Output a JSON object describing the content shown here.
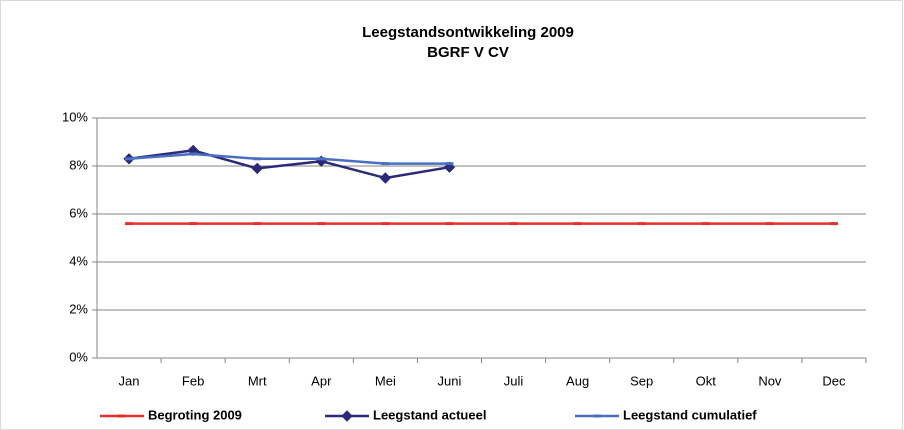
{
  "chart_data": {
    "type": "line",
    "title": "Leegstandsontwikkeling 2009",
    "subtitle": "BGRF V CV",
    "categories": [
      "Jan",
      "Feb",
      "Mrt",
      "Apr",
      "Mei",
      "Juni",
      "Juli",
      "Aug",
      "Sep",
      "Okt",
      "Nov",
      "Dec"
    ],
    "series": [
      {
        "name": "Begroting 2009",
        "color": "#e8302a",
        "marker": "dash",
        "values": [
          5.6,
          5.6,
          5.6,
          5.6,
          5.6,
          5.6,
          5.6,
          5.6,
          5.6,
          5.6,
          5.6,
          5.6
        ]
      },
      {
        "name": "Leegstand actueel",
        "color": "#2b2a78",
        "marker": "diamond",
        "values": [
          8.3,
          8.65,
          7.9,
          8.2,
          7.5,
          7.95,
          null,
          null,
          null,
          null,
          null,
          null
        ]
      },
      {
        "name": "Leegstand cumulatief",
        "color": "#4a6fc2",
        "marker": "dash",
        "values": [
          8.3,
          8.5,
          8.3,
          8.3,
          8.1,
          8.1,
          null,
          null,
          null,
          null,
          null,
          null
        ]
      }
    ],
    "ylim": [
      0,
      10
    ],
    "yticks": [
      {
        "value": 0,
        "label": "0%"
      },
      {
        "value": 2,
        "label": "2%"
      },
      {
        "value": 4,
        "label": "4%"
      },
      {
        "value": 6,
        "label": "6%"
      },
      {
        "value": 8,
        "label": "8%"
      },
      {
        "value": 10,
        "label": "10%"
      }
    ],
    "grid": true,
    "legend": "bottom"
  }
}
